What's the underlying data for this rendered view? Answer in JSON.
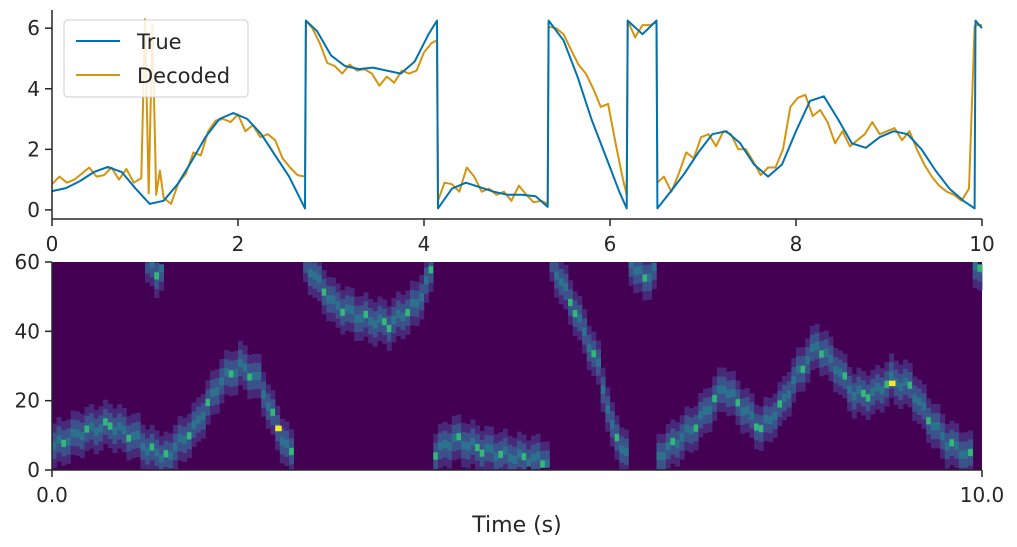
{
  "colors": {
    "true_line": "#0072B2",
    "decoded_line": "#D4940E",
    "heatmap_background": "#440154",
    "axis": "#262626"
  },
  "chart_data": [
    {
      "type": "line",
      "xlim": [
        0,
        10
      ],
      "ylim": [
        -0.3,
        6.6
      ],
      "x_ticks": [
        "0",
        "2",
        "4",
        "6",
        "8",
        "10"
      ],
      "y_ticks": [
        "0",
        "2",
        "4",
        "6"
      ],
      "legend": {
        "placement": "top-left",
        "entries": [
          "True",
          "Decoded"
        ]
      },
      "grid": false,
      "series": [
        {
          "name": "True",
          "color": "#0072B2",
          "x": [
            0,
            0.15,
            0.3,
            0.45,
            0.6,
            0.75,
            0.9,
            1.05,
            1.2,
            1.35,
            1.5,
            1.65,
            1.8,
            1.95,
            2.1,
            2.25,
            2.4,
            2.55,
            2.72,
            2.73,
            2.85,
            3.0,
            3.15,
            3.3,
            3.45,
            3.6,
            3.75,
            3.9,
            4.05,
            4.14,
            4.15,
            4.3,
            4.45,
            4.6,
            4.75,
            4.9,
            5.05,
            5.2,
            5.33,
            5.34,
            5.5,
            5.65,
            5.8,
            5.95,
            6.1,
            6.18,
            6.19,
            6.35,
            6.5,
            6.51,
            6.65,
            6.8,
            6.95,
            7.1,
            7.25,
            7.4,
            7.55,
            7.7,
            7.85,
            8.0,
            8.15,
            8.3,
            8.45,
            8.6,
            8.75,
            8.9,
            9.05,
            9.2,
            9.35,
            9.5,
            9.65,
            9.8,
            9.92,
            9.93,
            10.0
          ],
          "values": [
            0.62,
            0.72,
            0.95,
            1.25,
            1.42,
            1.25,
            0.7,
            0.2,
            0.3,
            0.85,
            1.6,
            2.4,
            3.0,
            3.2,
            3.0,
            2.5,
            1.8,
            1.1,
            0.05,
            6.25,
            5.9,
            5.1,
            4.75,
            4.65,
            4.7,
            4.6,
            4.5,
            4.9,
            5.8,
            6.25,
            0.05,
            0.7,
            0.9,
            0.75,
            0.6,
            0.5,
            0.5,
            0.45,
            0.1,
            6.25,
            5.6,
            4.4,
            3.0,
            1.8,
            0.6,
            0.05,
            6.25,
            5.8,
            6.25,
            0.05,
            0.6,
            1.2,
            1.9,
            2.5,
            2.6,
            2.2,
            1.5,
            1.1,
            1.5,
            2.6,
            3.6,
            3.75,
            3.0,
            2.2,
            2.05,
            2.4,
            2.6,
            2.5,
            2.0,
            1.3,
            0.7,
            0.3,
            0.05,
            6.25,
            6.0
          ]
        },
        {
          "name": "Decoded",
          "color": "#D4940E",
          "x": [
            0,
            0.08,
            0.16,
            0.24,
            0.32,
            0.4,
            0.48,
            0.56,
            0.64,
            0.72,
            0.8,
            0.88,
            0.96,
            1.0,
            1.04,
            1.08,
            1.12,
            1.16,
            1.2,
            1.28,
            1.36,
            1.44,
            1.52,
            1.6,
            1.68,
            1.76,
            1.84,
            1.92,
            2.0,
            2.08,
            2.16,
            2.24,
            2.32,
            2.4,
            2.48,
            2.56,
            2.64,
            2.72,
            2.73,
            2.8,
            2.88,
            2.96,
            3.04,
            3.12,
            3.2,
            3.28,
            3.36,
            3.44,
            3.52,
            3.6,
            3.68,
            3.76,
            3.84,
            3.92,
            4.0,
            4.08,
            4.14,
            4.15,
            4.22,
            4.3,
            4.38,
            4.46,
            4.54,
            4.62,
            4.7,
            4.78,
            4.86,
            4.94,
            5.02,
            5.1,
            5.18,
            5.26,
            5.33,
            5.34,
            5.42,
            5.5,
            5.58,
            5.66,
            5.74,
            5.82,
            5.9,
            5.98,
            6.06,
            6.14,
            6.18,
            6.19,
            6.27,
            6.35,
            6.43,
            6.5,
            6.51,
            6.58,
            6.66,
            6.74,
            6.82,
            6.9,
            6.98,
            7.06,
            7.14,
            7.22,
            7.3,
            7.38,
            7.46,
            7.54,
            7.62,
            7.7,
            7.78,
            7.86,
            7.94,
            8.02,
            8.1,
            8.18,
            8.26,
            8.34,
            8.42,
            8.5,
            8.58,
            8.66,
            8.74,
            8.82,
            8.9,
            8.98,
            9.06,
            9.14,
            9.22,
            9.3,
            9.38,
            9.46,
            9.54,
            9.62,
            9.7,
            9.78,
            9.86,
            9.92,
            9.93,
            10.0
          ],
          "values": [
            0.85,
            1.1,
            0.9,
            1.0,
            1.2,
            1.4,
            1.1,
            1.15,
            1.4,
            1.0,
            1.35,
            0.9,
            1.05,
            6.3,
            0.55,
            6.1,
            0.5,
            1.3,
            0.4,
            0.2,
            0.9,
            1.2,
            1.9,
            1.8,
            2.6,
            2.95,
            3.0,
            2.9,
            3.15,
            2.6,
            2.8,
            2.4,
            2.5,
            2.3,
            1.7,
            1.4,
            1.15,
            1.1,
            6.25,
            6.0,
            5.5,
            4.85,
            4.75,
            4.5,
            4.8,
            4.6,
            4.65,
            4.5,
            4.1,
            4.4,
            4.2,
            4.6,
            4.5,
            4.6,
            5.2,
            5.5,
            5.6,
            0.3,
            0.9,
            0.85,
            0.6,
            1.4,
            1.1,
            0.6,
            0.7,
            0.5,
            0.6,
            0.3,
            0.8,
            0.5,
            0.25,
            0.3,
            0.2,
            6.05,
            6.0,
            5.8,
            5.3,
            4.8,
            4.5,
            4.0,
            3.4,
            3.5,
            2.2,
            1.0,
            0.5,
            6.25,
            5.7,
            6.1,
            6.1,
            6.2,
            0.9,
            1.1,
            0.6,
            1.2,
            1.9,
            1.7,
            2.4,
            2.5,
            2.1,
            2.6,
            2.5,
            2.0,
            2.0,
            1.6,
            1.15,
            1.4,
            1.4,
            2.0,
            3.4,
            3.7,
            3.8,
            3.1,
            3.3,
            2.9,
            2.2,
            2.6,
            2.1,
            2.3,
            2.5,
            2.9,
            2.5,
            2.6,
            2.7,
            2.3,
            2.6,
            2.0,
            1.5,
            1.1,
            0.8,
            0.6,
            0.5,
            0.3,
            0.7,
            6.05,
            6.1,
            6.1
          ]
        }
      ]
    },
    {
      "type": "heatmap",
      "xlim": [
        0.0,
        10.0
      ],
      "ylim": [
        0,
        60
      ],
      "x_ticks": [
        "0.0",
        "10.0"
      ],
      "y_ticks": [
        "0",
        "20",
        "40",
        "60"
      ],
      "xlabel": "Time (s)",
      "ylabel": "",
      "grid": false,
      "colormap": "viridis",
      "ridges": [
        {
          "x": [
            0,
            0.3,
            0.6,
            0.9,
            1.0,
            1.2
          ],
          "y": [
            7,
            11,
            13,
            9,
            6,
            4
          ]
        },
        {
          "x": [
            1.0,
            1.1,
            1.2
          ],
          "y": [
            60,
            57,
            60
          ]
        },
        {
          "x": [
            1.2,
            1.5,
            1.8,
            2.0,
            2.2,
            2.4,
            2.6
          ],
          "y": [
            4,
            12,
            26,
            30,
            26,
            12,
            2
          ]
        },
        {
          "x": [
            2.7,
            3.0,
            3.3,
            3.6,
            3.9,
            4.1
          ],
          "y": [
            60,
            48,
            44,
            42,
            48,
            60
          ]
        },
        {
          "x": [
            4.1,
            4.3,
            4.6,
            4.9,
            5.2,
            5.35
          ],
          "y": [
            5,
            9,
            6,
            4,
            3,
            2
          ]
        },
        {
          "x": [
            5.35,
            5.6,
            5.85,
            6.0,
            6.2
          ],
          "y": [
            60,
            46,
            30,
            12,
            2
          ]
        },
        {
          "x": [
            6.2,
            6.35,
            6.5
          ],
          "y": [
            60,
            55,
            60
          ]
        },
        {
          "x": [
            6.5,
            6.9,
            7.2,
            7.4,
            7.6,
            7.8,
            8.0,
            8.2,
            8.4,
            8.6,
            8.8,
            9.0,
            9.2,
            9.4,
            9.6,
            9.9
          ],
          "y": [
            4,
            13,
            24,
            18,
            12,
            18,
            28,
            36,
            30,
            22,
            22,
            26,
            24,
            15,
            8,
            3
          ]
        },
        {
          "x": [
            9.9,
            10.0
          ],
          "y": [
            60,
            56
          ]
        }
      ],
      "hot_spots": [
        {
          "x": 2.4,
          "y": 12
        },
        {
          "x": 9.0,
          "y": 25
        }
      ]
    }
  ]
}
